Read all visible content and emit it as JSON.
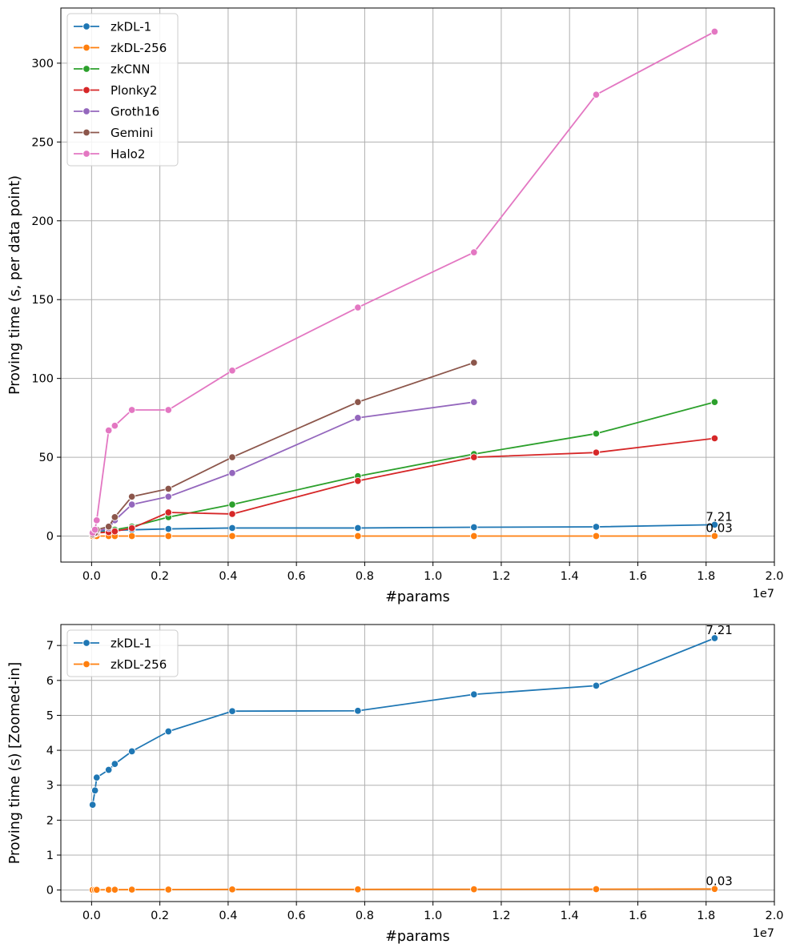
{
  "chart_data": [
    {
      "type": "line",
      "xlabel": "#params",
      "ylabel": "Proving time (s, per data point)",
      "x_offset_label": "1e7",
      "xlim": [
        -0.09,
        2.0
      ],
      "ylim": [
        -16.5,
        335
      ],
      "x_ticks": [
        0.0,
        0.2,
        0.4,
        0.6,
        0.8,
        1.0,
        1.2,
        1.4,
        1.6,
        1.8,
        2.0
      ],
      "x_tick_labels": [
        "0.0",
        "0.2",
        "0.4",
        "0.6",
        "0.8",
        "1.0",
        "1.2",
        "1.4",
        "1.6",
        "1.8",
        "2.0"
      ],
      "y_ticks": [
        0,
        50,
        100,
        150,
        200,
        250,
        300
      ],
      "y_tick_labels": [
        "0",
        "50",
        "100",
        "150",
        "200",
        "250",
        "300"
      ],
      "grid": true,
      "legend_position": "top-left",
      "series": [
        {
          "name": "zkDL-1",
          "color": "#1f77b4",
          "x": [
            0.003,
            0.01,
            0.015,
            0.05,
            0.068,
            0.118,
            0.225,
            0.412,
            0.78,
            1.12,
            1.478,
            1.825
          ],
          "y": [
            2.44,
            2.85,
            3.22,
            3.44,
            3.61,
            3.97,
            4.54,
            5.12,
            5.13,
            5.6,
            5.85,
            7.21
          ]
        },
        {
          "name": "zkDL-256",
          "color": "#ff7f0e",
          "x": [
            0.003,
            0.01,
            0.015,
            0.05,
            0.068,
            0.118,
            0.225,
            0.412,
            0.78,
            1.12,
            1.478,
            1.825
          ],
          "y": [
            0.005,
            0.006,
            0.007,
            0.009,
            0.01,
            0.012,
            0.014,
            0.018,
            0.02,
            0.022,
            0.025,
            0.03
          ]
        },
        {
          "name": "zkCNN",
          "color": "#2ca02c",
          "x": [
            0.003,
            0.01,
            0.015,
            0.05,
            0.068,
            0.118,
            0.225,
            0.412,
            0.78,
            1.12,
            1.478,
            1.825
          ],
          "y": [
            1,
            1.5,
            2,
            3,
            4,
            6,
            12,
            20,
            38,
            52,
            65,
            85
          ]
        },
        {
          "name": "Plonky2",
          "color": "#d62728",
          "x": [
            0.003,
            0.01,
            0.015,
            0.05,
            0.068,
            0.118,
            0.225,
            0.412,
            0.78,
            1.12,
            1.478,
            1.825
          ],
          "y": [
            1,
            1.5,
            2,
            2.5,
            3,
            5,
            15,
            14,
            35,
            50,
            53,
            62
          ]
        },
        {
          "name": "Groth16",
          "color": "#9467bd",
          "x": [
            0.003,
            0.01,
            0.015,
            0.05,
            0.068,
            0.118,
            0.225,
            0.412,
            0.78,
            1.12
          ],
          "y": [
            1,
            2,
            3,
            5,
            10,
            20,
            25,
            40,
            75,
            85
          ]
        },
        {
          "name": "Gemini",
          "color": "#8c564b",
          "x": [
            0.003,
            0.01,
            0.015,
            0.05,
            0.068,
            0.118,
            0.225,
            0.412,
            0.78,
            1.12
          ],
          "y": [
            1,
            2,
            4,
            6,
            12,
            25,
            30,
            50,
            85,
            110
          ]
        },
        {
          "name": "Halo2",
          "color": "#e377c2",
          "x": [
            0.003,
            0.01,
            0.015,
            0.05,
            0.068,
            0.118,
            0.225,
            0.412,
            0.78,
            1.12,
            1.478,
            1.825
          ],
          "y": [
            2,
            4,
            10,
            67,
            70,
            80,
            80,
            105,
            145,
            180,
            280,
            320
          ]
        }
      ],
      "annotations": [
        {
          "text": "7.21",
          "x": 1.825,
          "y": 7.21
        },
        {
          "text": "0.03",
          "x": 1.825,
          "y": 0.03
        }
      ]
    },
    {
      "type": "line",
      "xlabel": "#params",
      "ylabel": "Proving time (s) [Zoomed-in]",
      "x_offset_label": "1e7",
      "xlim": [
        -0.09,
        2.0
      ],
      "ylim": [
        -0.33,
        7.6
      ],
      "x_ticks": [
        0.0,
        0.2,
        0.4,
        0.6,
        0.8,
        1.0,
        1.2,
        1.4,
        1.6,
        1.8,
        2.0
      ],
      "x_tick_labels": [
        "0.0",
        "0.2",
        "0.4",
        "0.6",
        "0.8",
        "1.0",
        "1.2",
        "1.4",
        "1.6",
        "1.8",
        "2.0"
      ],
      "y_ticks": [
        0,
        1,
        2,
        3,
        4,
        5,
        6,
        7
      ],
      "y_tick_labels": [
        "0",
        "1",
        "2",
        "3",
        "4",
        "5",
        "6",
        "7"
      ],
      "grid": true,
      "legend_position": "top-left",
      "series": [
        {
          "name": "zkDL-1",
          "color": "#1f77b4",
          "x": [
            0.003,
            0.01,
            0.015,
            0.05,
            0.068,
            0.118,
            0.225,
            0.412,
            0.78,
            1.12,
            1.478,
            1.825
          ],
          "y": [
            2.44,
            2.85,
            3.22,
            3.44,
            3.61,
            3.97,
            4.54,
            5.12,
            5.13,
            5.6,
            5.85,
            7.21
          ]
        },
        {
          "name": "zkDL-256",
          "color": "#ff7f0e",
          "x": [
            0.003,
            0.01,
            0.015,
            0.05,
            0.068,
            0.118,
            0.225,
            0.412,
            0.78,
            1.12,
            1.478,
            1.825
          ],
          "y": [
            0.005,
            0.006,
            0.007,
            0.009,
            0.01,
            0.012,
            0.014,
            0.018,
            0.02,
            0.022,
            0.025,
            0.03
          ]
        }
      ],
      "annotations": [
        {
          "text": "7.21",
          "x": 1.825,
          "y": 7.21
        },
        {
          "text": "0.03",
          "x": 1.825,
          "y": 0.03
        }
      ]
    }
  ]
}
